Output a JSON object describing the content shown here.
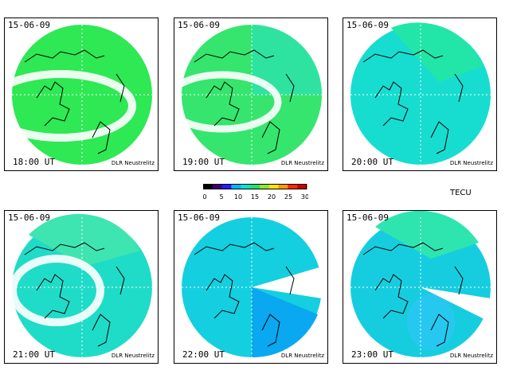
{
  "scale": {
    "ticks": [
      "0",
      "5",
      "10",
      "15",
      "20",
      "25",
      "30"
    ],
    "unit": "TECU",
    "colors": [
      "#000000",
      "#3a007a",
      "#1f1fff",
      "#00b4ff",
      "#00e6d2",
      "#22e070",
      "#8be82a",
      "#f2e600",
      "#ff9900",
      "#ff2a00",
      "#c80000"
    ]
  },
  "panels": [
    {
      "date": "15-06-09",
      "time": "18:00 UT",
      "credit": "DLR Neustrelitz",
      "base_color": "#2ee854",
      "inner_color": "#49f07a"
    },
    {
      "date": "15-06-09",
      "time": "19:00 UT",
      "credit": "DLR Neustrelitz",
      "base_color": "#35e56e",
      "inner_color": "#2ee3a0"
    },
    {
      "date": "15-06-09",
      "time": "20:00 UT",
      "credit": "DLR Neustrelitz",
      "base_color": "#17ddd0",
      "inner_color": "#22e6a8"
    },
    {
      "date": "15-06-09",
      "time": "21:00 UT",
      "credit": "DLR Neustrelitz",
      "base_color": "#1fdcc8",
      "inner_color": "#3ee5b0"
    },
    {
      "date": "15-06-09",
      "time": "22:00 UT",
      "credit": "DLR Neustrelitz",
      "base_color": "#14cfe0",
      "inner_color": "#0aa8f0"
    },
    {
      "date": "15-06-09",
      "time": "23:00 UT",
      "credit": "DLR Neustrelitz",
      "base_color": "#16cde0",
      "inner_color": "#27c8f0"
    }
  ]
}
